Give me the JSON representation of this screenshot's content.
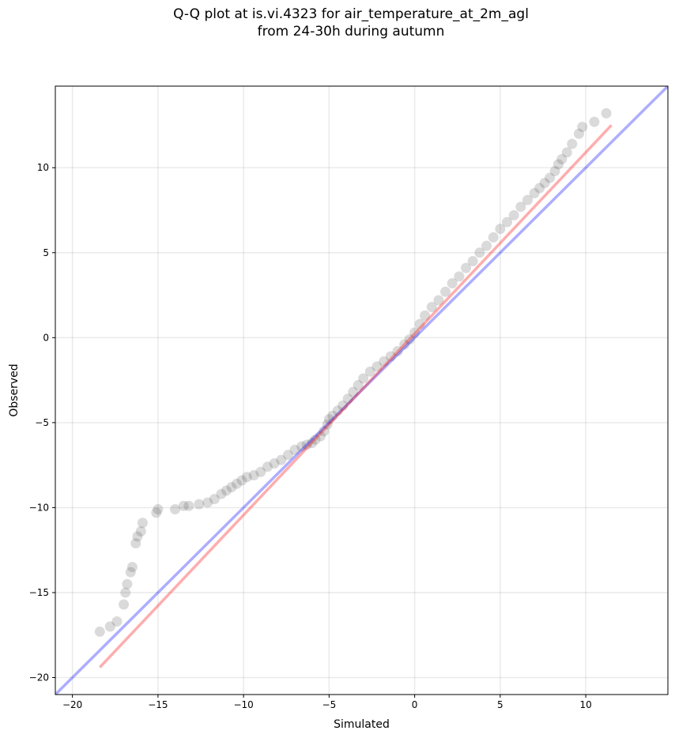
{
  "chart_data": {
    "type": "scatter",
    "title_lines": [
      "Q-Q plot at is.vi.4323 for air_temperature_at_2m_agl",
      "from 24-30h during autumn"
    ],
    "xlabel": "Simulated",
    "ylabel": "Observed",
    "xlim": [
      -21,
      14.8
    ],
    "ylim": [
      -21,
      14.8
    ],
    "xticks": [
      -20,
      -15,
      -10,
      -5,
      0,
      5,
      10
    ],
    "yticks": [
      -20,
      -15,
      -10,
      -5,
      0,
      5,
      10
    ],
    "xtick_labels": [
      "−20",
      "−15",
      "−10",
      "−5",
      "0",
      "5",
      "10"
    ],
    "ytick_labels": [
      "−20",
      "−15",
      "−10",
      "−5",
      "0",
      "5",
      "10"
    ],
    "grid": true,
    "lines": [
      {
        "role": "identity",
        "color": "#0000ff",
        "x": [
          -21,
          14.8
        ],
        "y": [
          -21,
          14.8
        ]
      },
      {
        "role": "fit",
        "color": "#ff0000",
        "x": [
          -18.4,
          11.5
        ],
        "y": [
          -19.4,
          12.5
        ]
      }
    ],
    "points": {
      "color": "#555555",
      "x": [
        -18.4,
        -17.8,
        -17.4,
        -17.0,
        -16.9,
        -16.8,
        -16.6,
        -16.5,
        -16.3,
        -16.2,
        -16.0,
        -15.9,
        -15.1,
        -15.0,
        -14.0,
        -13.5,
        -13.2,
        -12.6,
        -12.1,
        -11.7,
        -11.3,
        -11.0,
        -10.7,
        -10.4,
        -10.1,
        -9.8,
        -9.4,
        -9.0,
        -8.6,
        -8.2,
        -7.8,
        -7.4,
        -7.0,
        -6.6,
        -6.3,
        -6.0,
        -5.8,
        -5.5,
        -5.3,
        -5.1,
        -5.0,
        -4.8,
        -4.5,
        -4.2,
        -3.9,
        -3.6,
        -3.3,
        -3.0,
        -2.6,
        -2.2,
        -1.8,
        -1.4,
        -1.0,
        -0.6,
        -0.3,
        0.0,
        0.3,
        0.6,
        1.0,
        1.4,
        1.8,
        2.2,
        2.6,
        3.0,
        3.4,
        3.8,
        4.2,
        4.6,
        5.0,
        5.4,
        5.8,
        6.2,
        6.6,
        7.0,
        7.3,
        7.6,
        7.9,
        8.2,
        8.4,
        8.6,
        8.9,
        9.2,
        9.6,
        9.8,
        10.5,
        11.2
      ],
      "y": [
        -17.3,
        -17.0,
        -16.7,
        -15.7,
        -15.0,
        -14.5,
        -13.8,
        -13.5,
        -12.1,
        -11.7,
        -11.4,
        -10.9,
        -10.3,
        -10.1,
        -10.1,
        -9.9,
        -9.9,
        -9.8,
        -9.7,
        -9.5,
        -9.2,
        -9.0,
        -8.8,
        -8.6,
        -8.4,
        -8.2,
        -8.1,
        -7.9,
        -7.6,
        -7.4,
        -7.2,
        -6.9,
        -6.6,
        -6.4,
        -6.3,
        -6.2,
        -6.0,
        -5.8,
        -5.5,
        -5.1,
        -4.8,
        -4.6,
        -4.3,
        -4.0,
        -3.6,
        -3.2,
        -2.8,
        -2.4,
        -2.0,
        -1.7,
        -1.4,
        -1.1,
        -0.8,
        -0.4,
        -0.1,
        0.3,
        0.8,
        1.3,
        1.8,
        2.2,
        2.7,
        3.2,
        3.6,
        4.1,
        4.5,
        5.0,
        5.4,
        5.9,
        6.4,
        6.8,
        7.2,
        7.7,
        8.1,
        8.5,
        8.8,
        9.1,
        9.4,
        9.8,
        10.2,
        10.5,
        10.9,
        11.4,
        12.0,
        12.4,
        12.7,
        13.2
      ]
    }
  }
}
